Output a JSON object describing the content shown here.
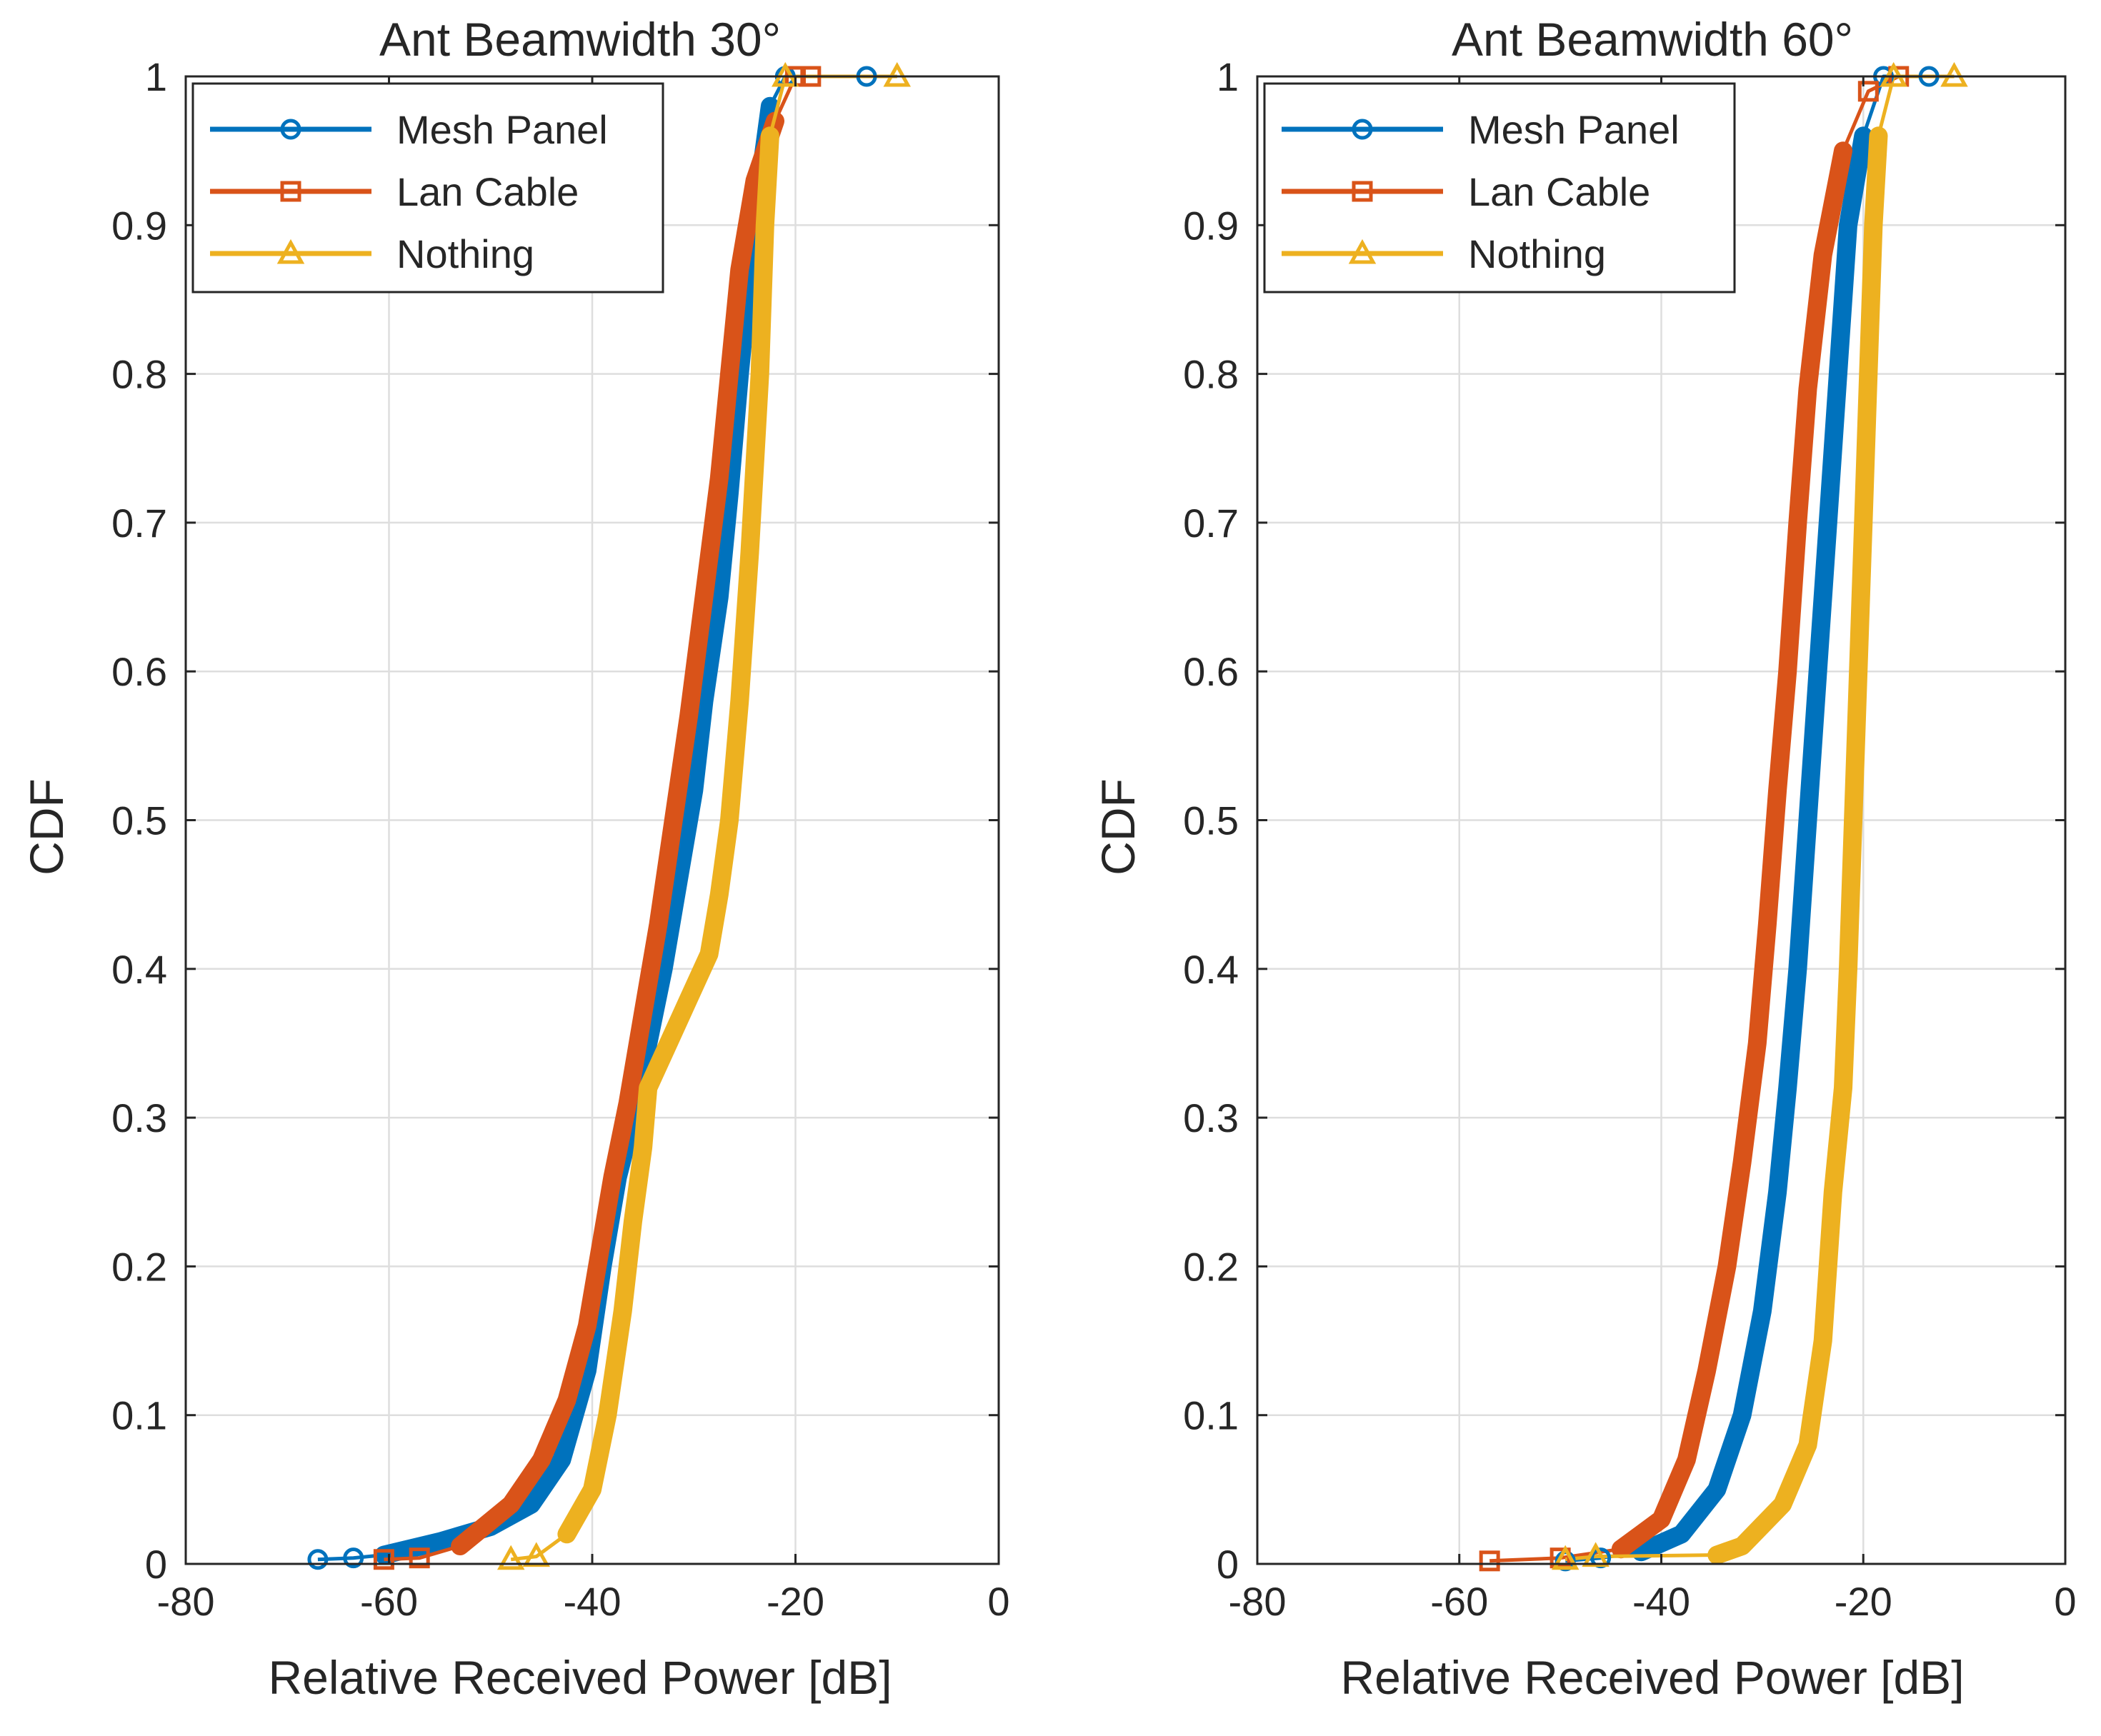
{
  "chart_data": [
    {
      "type": "line",
      "title": "Ant Beamwidth 30°",
      "xlabel": "Relative Received Power [dB]",
      "ylabel": "CDF",
      "xlim": [
        -80,
        0
      ],
      "ylim": [
        0,
        1
      ],
      "xticks": [
        -80,
        -60,
        -40,
        -20,
        0
      ],
      "xtick_labels": [
        "-80",
        "-60",
        "-40",
        "-20",
        "0"
      ],
      "yticks": [
        0,
        0.1,
        0.2,
        0.3,
        0.4,
        0.5,
        0.6,
        0.7,
        0.8,
        0.9,
        1
      ],
      "ytick_labels": [
        "0",
        "0.1",
        "0.2",
        "0.3",
        "0.4",
        "0.5",
        "0.6",
        "0.7",
        "0.8",
        "0.9",
        "1"
      ],
      "grid": true,
      "legend_position": "top-left",
      "series": [
        {
          "name": "Mesh Panel",
          "color": "#0072BD",
          "marker": "circle",
          "points": [
            [
              -67,
              0.003
            ],
            [
              -63.5,
              0.004
            ],
            [
              -60.5,
              0.006
            ],
            [
              -55,
              0.015
            ],
            [
              -50,
              0.025
            ],
            [
              -46,
              0.04
            ],
            [
              -43,
              0.07
            ],
            [
              -40.5,
              0.13
            ],
            [
              -39,
              0.2
            ],
            [
              -37.5,
              0.26
            ],
            [
              -36,
              0.3
            ],
            [
              -34.5,
              0.35
            ],
            [
              -33,
              0.4
            ],
            [
              -31.5,
              0.46
            ],
            [
              -30,
              0.52
            ],
            [
              -29,
              0.58
            ],
            [
              -27.5,
              0.65
            ],
            [
              -26.5,
              0.72
            ],
            [
              -25.5,
              0.8
            ],
            [
              -24.5,
              0.87
            ],
            [
              -23.3,
              0.94
            ],
            [
              -22.5,
              0.98
            ],
            [
              -21,
              1
            ],
            [
              -13,
              1
            ]
          ]
        },
        {
          "name": "Lan Cable",
          "color": "#D95319",
          "marker": "square",
          "points": [
            [
              -60.5,
              0.003
            ],
            [
              -57,
              0.004
            ],
            [
              -53,
              0.012
            ],
            [
              -48,
              0.04
            ],
            [
              -45,
              0.07
            ],
            [
              -42.5,
              0.11
            ],
            [
              -40.5,
              0.16
            ],
            [
              -39.5,
              0.2
            ],
            [
              -38,
              0.26
            ],
            [
              -36.5,
              0.31
            ],
            [
              -35,
              0.37
            ],
            [
              -33.5,
              0.43
            ],
            [
              -32,
              0.5
            ],
            [
              -30.5,
              0.57
            ],
            [
              -29,
              0.65
            ],
            [
              -27.5,
              0.73
            ],
            [
              -26.5,
              0.8
            ],
            [
              -25.5,
              0.87
            ],
            [
              -24,
              0.93
            ],
            [
              -22,
              0.97
            ],
            [
              -20,
              1
            ],
            [
              -18.5,
              1
            ]
          ]
        },
        {
          "name": "Nothing",
          "color": "#EDB120",
          "marker": "triangle",
          "points": [
            [
              -48,
              0.003
            ],
            [
              -45.5,
              0.005
            ],
            [
              -42.5,
              0.02
            ],
            [
              -40,
              0.05
            ],
            [
              -38.5,
              0.1
            ],
            [
              -37,
              0.17
            ],
            [
              -36,
              0.23
            ],
            [
              -35,
              0.28
            ],
            [
              -34.5,
              0.32
            ],
            [
              -32.5,
              0.35
            ],
            [
              -30.5,
              0.38
            ],
            [
              -28.5,
              0.41
            ],
            [
              -27.5,
              0.45
            ],
            [
              -26.5,
              0.5
            ],
            [
              -25.5,
              0.58
            ],
            [
              -24.5,
              0.68
            ],
            [
              -23.5,
              0.8
            ],
            [
              -23,
              0.9
            ],
            [
              -22.5,
              0.96
            ],
            [
              -21,
              1
            ],
            [
              -10,
              1
            ]
          ]
        }
      ]
    },
    {
      "type": "line",
      "title": "Ant Beamwidth 60°",
      "xlabel": "Relative Received Power [dB]",
      "ylabel": "CDF",
      "xlim": [
        -80,
        0
      ],
      "ylim": [
        0,
        1
      ],
      "xticks": [
        -80,
        -60,
        -40,
        -20,
        0
      ],
      "xtick_labels": [
        "-80",
        "-60",
        "-40",
        "-20",
        "0"
      ],
      "yticks": [
        0,
        0.1,
        0.2,
        0.3,
        0.4,
        0.5,
        0.6,
        0.7,
        0.8,
        0.9,
        1
      ],
      "ytick_labels": [
        "0",
        "0.1",
        "0.2",
        "0.3",
        "0.4",
        "0.5",
        "0.6",
        "0.7",
        "0.8",
        "0.9",
        "1"
      ],
      "grid": true,
      "legend_position": "top-left",
      "series": [
        {
          "name": "Mesh Panel",
          "color": "#0072BD",
          "marker": "circle",
          "points": [
            [
              -49.5,
              0.002
            ],
            [
              -46,
              0.004
            ],
            [
              -42,
              0.008
            ],
            [
              -38,
              0.02
            ],
            [
              -34.5,
              0.05
            ],
            [
              -32,
              0.1
            ],
            [
              -30,
              0.17
            ],
            [
              -28.5,
              0.25
            ],
            [
              -27.5,
              0.32
            ],
            [
              -26.5,
              0.4
            ],
            [
              -25.5,
              0.5
            ],
            [
              -24.5,
              0.6
            ],
            [
              -23.5,
              0.7
            ],
            [
              -22.5,
              0.8
            ],
            [
              -21.5,
              0.9
            ],
            [
              -20,
              0.96
            ],
            [
              -18,
              1
            ],
            [
              -13.5,
              1
            ]
          ]
        },
        {
          "name": "Lan Cable",
          "color": "#D95319",
          "marker": "square",
          "points": [
            [
              -57,
              0.002
            ],
            [
              -50,
              0.004
            ],
            [
              -44,
              0.01
            ],
            [
              -40,
              0.03
            ],
            [
              -37.5,
              0.07
            ],
            [
              -35.5,
              0.13
            ],
            [
              -33.5,
              0.2
            ],
            [
              -32,
              0.27
            ],
            [
              -30.5,
              0.35
            ],
            [
              -29.5,
              0.43
            ],
            [
              -28.5,
              0.52
            ],
            [
              -27.5,
              0.6
            ],
            [
              -26.5,
              0.7
            ],
            [
              -25.5,
              0.79
            ],
            [
              -24,
              0.88
            ],
            [
              -22,
              0.95
            ],
            [
              -19.5,
              0.99
            ],
            [
              -16.5,
              1
            ]
          ]
        },
        {
          "name": "Nothing",
          "color": "#EDB120",
          "marker": "triangle",
          "points": [
            [
              -49.5,
              0.003
            ],
            [
              -46.5,
              0.005
            ],
            [
              -34.5,
              0.006
            ],
            [
              -32,
              0.012
            ],
            [
              -28,
              0.04
            ],
            [
              -25.5,
              0.08
            ],
            [
              -24,
              0.15
            ],
            [
              -23,
              0.25
            ],
            [
              -22,
              0.32
            ],
            [
              -21.5,
              0.4
            ],
            [
              -21,
              0.5
            ],
            [
              -20.5,
              0.6
            ],
            [
              -20,
              0.7
            ],
            [
              -19.5,
              0.8
            ],
            [
              -19,
              0.9
            ],
            [
              -18.5,
              0.96
            ],
            [
              -17,
              1
            ],
            [
              -11,
              1
            ]
          ]
        }
      ]
    }
  ]
}
